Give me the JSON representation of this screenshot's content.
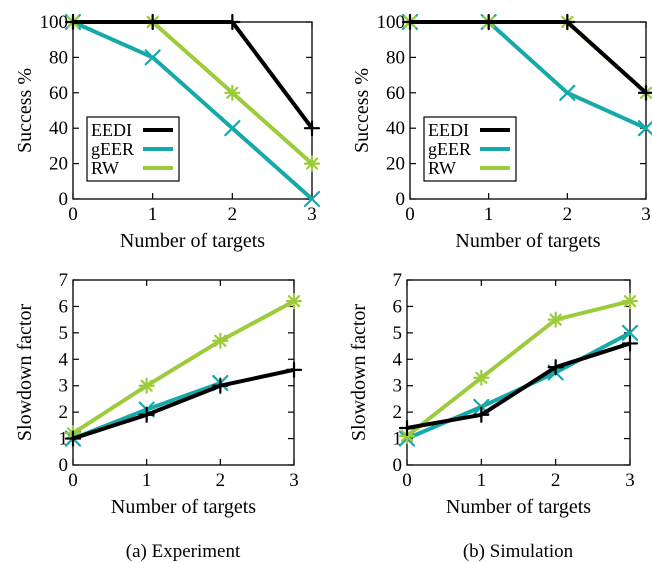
{
  "captions": {
    "a": "(a) Experiment",
    "b": "(b) Simulation"
  },
  "colors": {
    "EEDI": "#000000",
    "gEER": "#16a9a9",
    "RW": "#9ccb3b"
  },
  "chart_data": [
    {
      "id": "a-top",
      "type": "line",
      "xlabel": "Number of targets",
      "ylabel": "Success %",
      "x": [
        0,
        1,
        2,
        3
      ],
      "xlim": [
        0,
        3
      ],
      "ylim": [
        0,
        100
      ],
      "xticks": [
        0,
        1,
        2,
        3
      ],
      "yticks": [
        0,
        20,
        40,
        60,
        80,
        100
      ],
      "legend": "bottom-left",
      "series": [
        {
          "name": "EEDI",
          "values": [
            100,
            100,
            100,
            40
          ],
          "marker": "+"
        },
        {
          "name": "gEER",
          "values": [
            100,
            80,
            40,
            0
          ],
          "marker": "x"
        },
        {
          "name": "RW",
          "values": [
            100,
            100,
            60,
            20
          ],
          "marker": "star"
        }
      ]
    },
    {
      "id": "b-top",
      "type": "line",
      "xlabel": "Number of targets",
      "ylabel": "Success %",
      "x": [
        0,
        1,
        2,
        3
      ],
      "xlim": [
        0,
        3
      ],
      "ylim": [
        0,
        100
      ],
      "xticks": [
        0,
        1,
        2,
        3
      ],
      "yticks": [
        0,
        20,
        40,
        60,
        80,
        100
      ],
      "legend": "bottom-left",
      "series": [
        {
          "name": "EEDI",
          "values": [
            100,
            100,
            100,
            60
          ],
          "marker": "+"
        },
        {
          "name": "gEER",
          "values": [
            100,
            100,
            60,
            40
          ],
          "marker": "x"
        },
        {
          "name": "RW",
          "values": [
            100,
            100,
            100,
            60
          ],
          "marker": "star"
        }
      ]
    },
    {
      "id": "a-bottom",
      "type": "line",
      "xlabel": "Number of targets",
      "ylabel": "Slowdown factor",
      "x": [
        0,
        1,
        2,
        3
      ],
      "xlim": [
        0,
        3
      ],
      "ylim": [
        0,
        7
      ],
      "xticks": [
        0,
        1,
        2,
        3
      ],
      "yticks": [
        0,
        1,
        2,
        3,
        4,
        5,
        6,
        7
      ],
      "series": [
        {
          "name": "EEDI",
          "values": [
            1.0,
            1.9,
            3.0,
            3.6
          ],
          "marker": "+"
        },
        {
          "name": "gEER",
          "values": [
            1.0,
            2.1,
            3.1,
            null
          ],
          "marker": "x"
        },
        {
          "name": "RW",
          "values": [
            1.2,
            3.0,
            4.7,
            6.2
          ],
          "marker": "star"
        }
      ]
    },
    {
      "id": "b-bottom",
      "type": "line",
      "xlabel": "Number of targets",
      "ylabel": "Slowdown factor",
      "x": [
        0,
        1,
        2,
        3
      ],
      "xlim": [
        0,
        3
      ],
      "ylim": [
        0,
        7
      ],
      "xticks": [
        0,
        1,
        2,
        3
      ],
      "yticks": [
        0,
        1,
        2,
        3,
        4,
        5,
        6,
        7
      ],
      "series": [
        {
          "name": "EEDI",
          "values": [
            1.4,
            1.9,
            3.7,
            4.6
          ],
          "marker": "+"
        },
        {
          "name": "gEER",
          "values": [
            1.0,
            2.2,
            3.5,
            5.0
          ],
          "marker": "x"
        },
        {
          "name": "RW",
          "values": [
            1.1,
            3.3,
            5.5,
            6.2
          ],
          "marker": "star"
        }
      ]
    }
  ]
}
